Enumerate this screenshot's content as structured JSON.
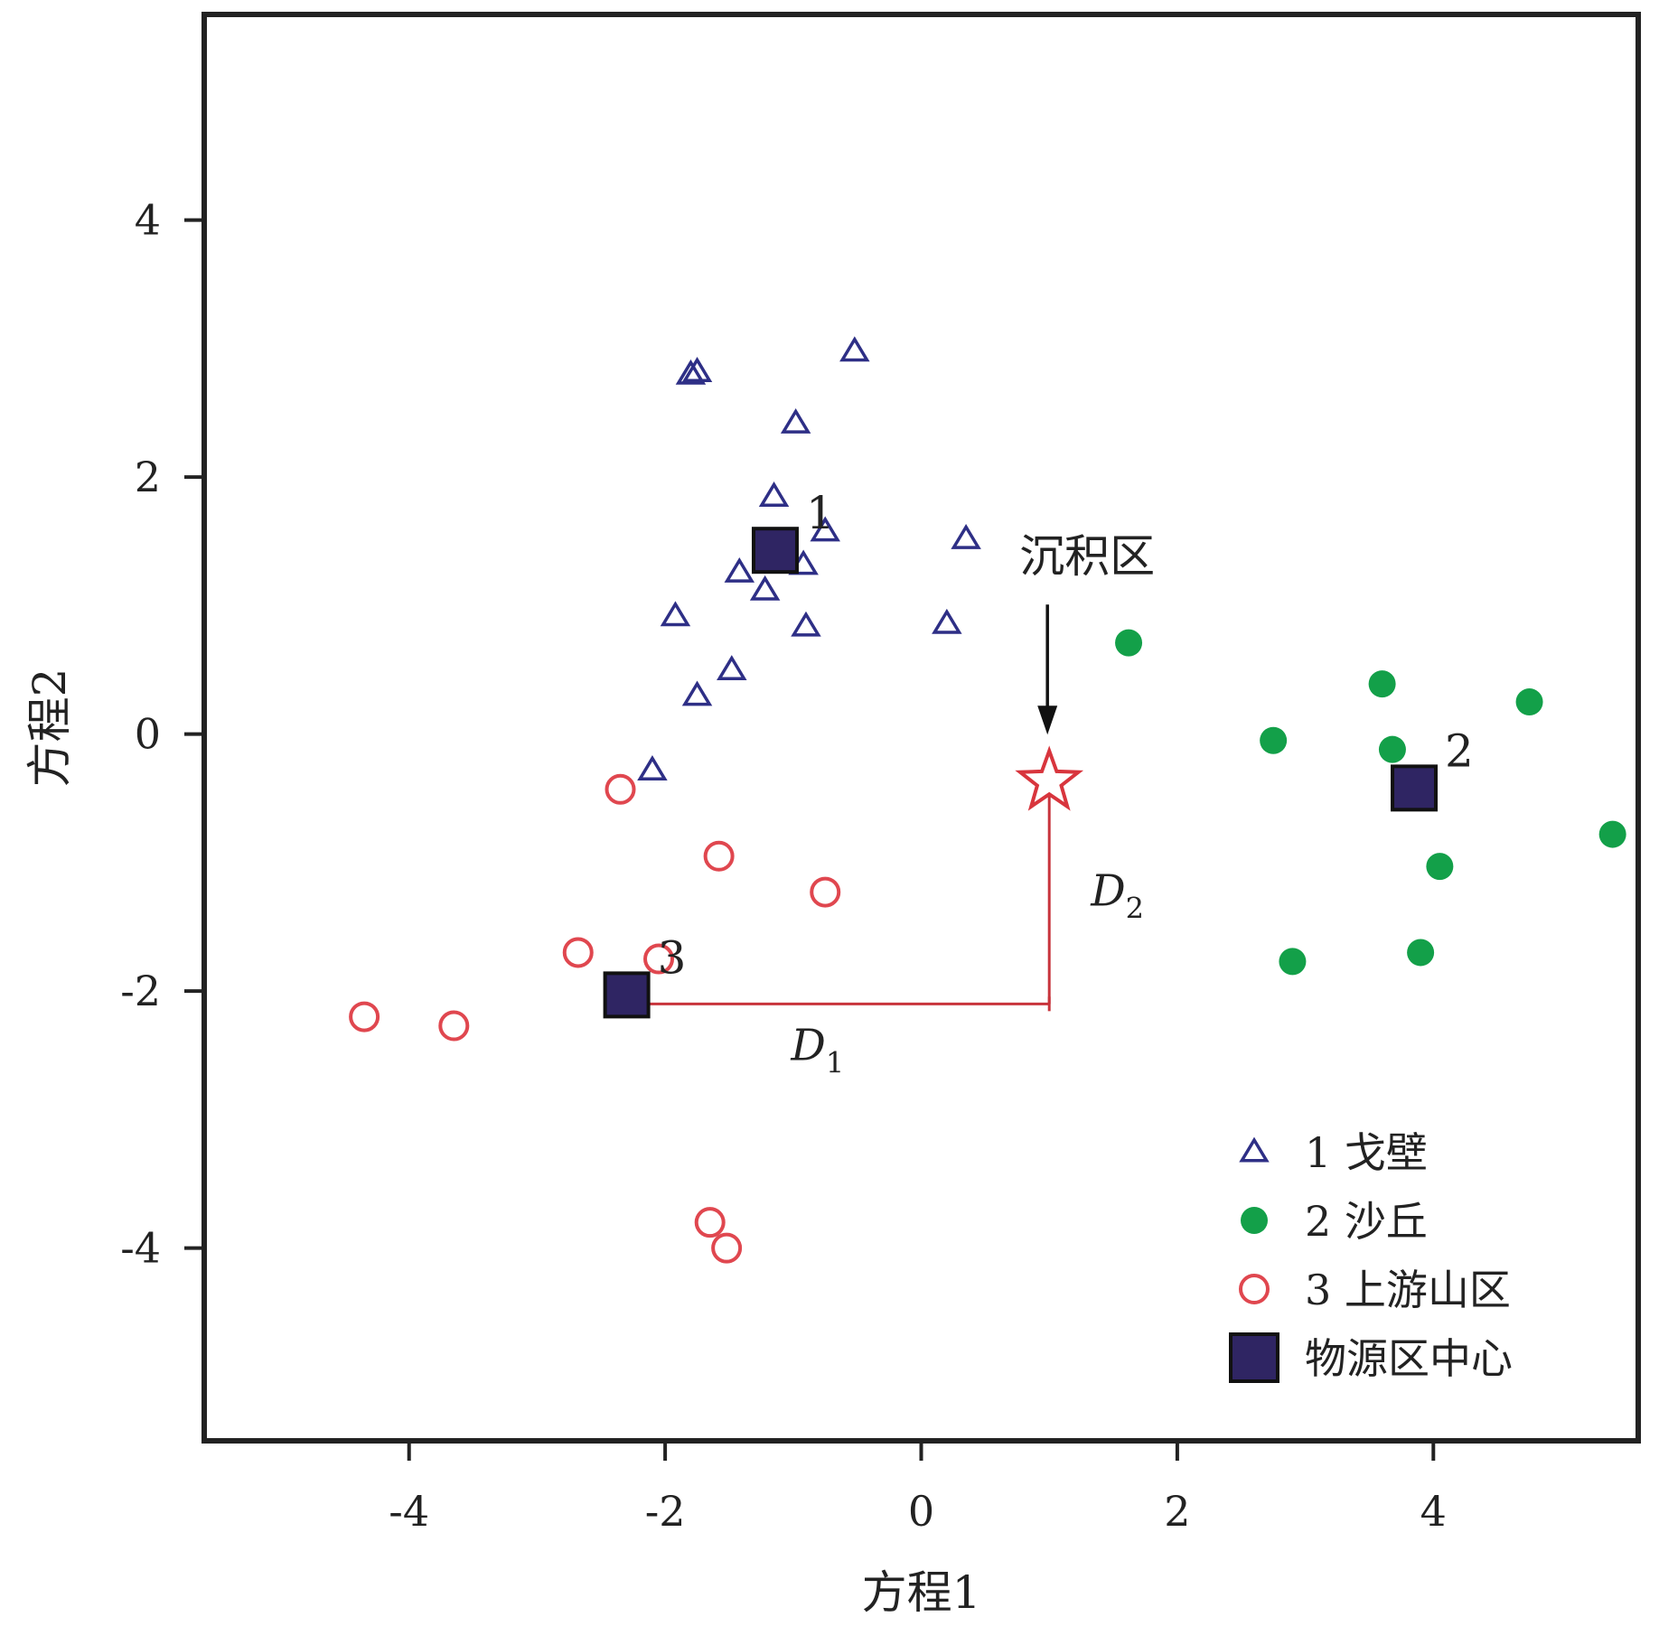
{
  "chart_data": {
    "type": "scatter",
    "xlabel": "方程1",
    "ylabel": "方程2",
    "xlim": [
      -5.6,
      5.6
    ],
    "ylim": [
      -5.5,
      5.6
    ],
    "xticks": [
      -4,
      -2,
      0,
      2,
      4
    ],
    "yticks": [
      -4,
      -2,
      0,
      2,
      4
    ],
    "xtick_labels": [
      "-4",
      "-2",
      "0",
      "2",
      "4"
    ],
    "ytick_labels": [
      "-4",
      "-2",
      "0",
      "2",
      "4"
    ],
    "grid": false,
    "legend_position": "bottom-right",
    "series": [
      {
        "name": "1 戈壁",
        "marker": "triangle-open",
        "color": "#2e2f86",
        "points": [
          [
            -1.8,
            2.8
          ],
          [
            -1.75,
            2.82
          ],
          [
            -0.52,
            2.98
          ],
          [
            -0.98,
            2.42
          ],
          [
            -1.15,
            1.85
          ],
          [
            -0.75,
            1.58
          ],
          [
            0.35,
            1.52
          ],
          [
            -0.92,
            1.32
          ],
          [
            -1.42,
            1.26
          ],
          [
            -1.22,
            1.12
          ],
          [
            -1.92,
            0.92
          ],
          [
            -0.9,
            0.84
          ],
          [
            0.2,
            0.86
          ],
          [
            -1.48,
            0.5
          ],
          [
            -1.75,
            0.3
          ],
          [
            -2.1,
            -0.28
          ]
        ]
      },
      {
        "name": "2 沙丘",
        "marker": "circle-filled",
        "color": "#13a049",
        "points": [
          [
            1.62,
            0.71
          ],
          [
            3.6,
            0.39
          ],
          [
            4.75,
            0.25
          ],
          [
            2.75,
            -0.05
          ],
          [
            3.68,
            -0.12
          ],
          [
            5.4,
            -0.78
          ],
          [
            4.05,
            -1.03
          ],
          [
            3.9,
            -1.7
          ],
          [
            2.9,
            -1.77
          ]
        ]
      },
      {
        "name": "3 上游山区",
        "marker": "circle-open",
        "color": "#e0474f",
        "points": [
          [
            -2.35,
            -0.43
          ],
          [
            -1.58,
            -0.95
          ],
          [
            -0.75,
            -1.23
          ],
          [
            -2.68,
            -1.7
          ],
          [
            -2.05,
            -1.75
          ],
          [
            -4.35,
            -2.2
          ],
          [
            -3.65,
            -2.27
          ],
          [
            -1.65,
            -3.8
          ],
          [
            -1.52,
            -4.0
          ]
        ]
      },
      {
        "name": "物源区中心",
        "marker": "square-filled",
        "color": "#2f2563",
        "points": [
          [
            -1.14,
            1.43
          ],
          [
            3.85,
            -0.42
          ],
          [
            -2.3,
            -2.03
          ]
        ],
        "labels": [
          "1",
          "2",
          "3"
        ]
      }
    ],
    "deposition_point": {
      "label": "沉积区",
      "x": 1.0,
      "y": -0.37,
      "marker": "star-open",
      "color": "#d8353d"
    },
    "distances": [
      {
        "label": "D",
        "subscript": "1",
        "from": [
          -2.3,
          -2.1
        ],
        "to": [
          1.0,
          -2.1
        ]
      },
      {
        "label": "D",
        "subscript": "2",
        "from": [
          1.0,
          -2.1
        ],
        "to": [
          1.0,
          -0.37
        ]
      }
    ]
  }
}
